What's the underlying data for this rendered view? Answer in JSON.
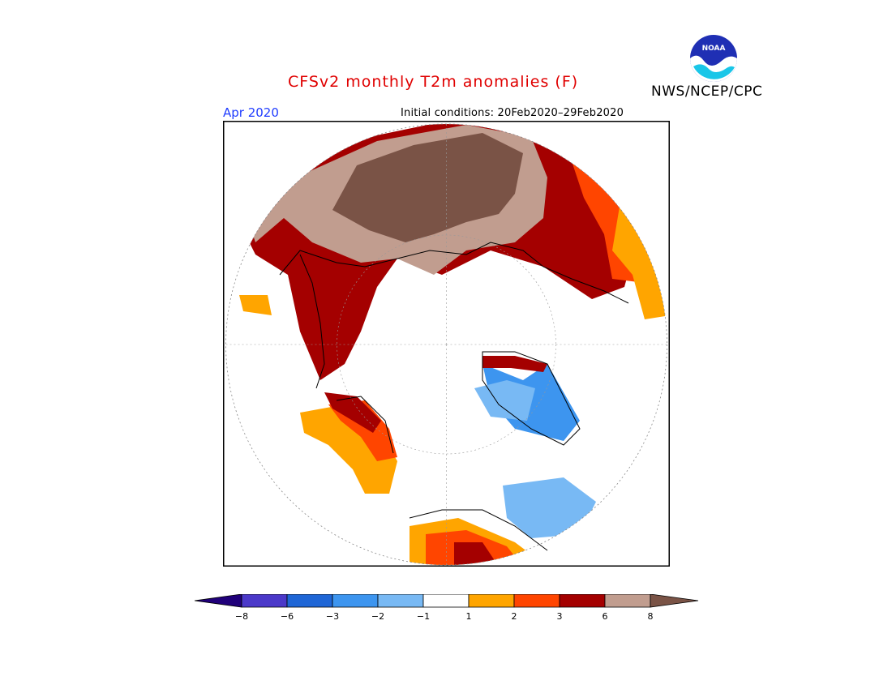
{
  "title": "CFSv2 monthly T2m anomalies (F)",
  "agency": "NWS/NCEP/CPC",
  "logo_text": "NOAA",
  "month": "Apr 2020",
  "initial_conditions": "Initial conditions: 20Feb2020–29Feb2020",
  "colors": {
    "title": "#e00000",
    "month": "#1f3cff"
  },
  "colorbar": {
    "colors": [
      "#20007a",
      "#4b39c9",
      "#1f66d6",
      "#3d95ef",
      "#78b9f4",
      "#ffffff",
      "#ffa500",
      "#ff4500",
      "#a40000",
      "#c19d8f",
      "#7a5346"
    ],
    "labels": [
      "−8",
      "−6",
      "−3",
      "−2",
      "−1",
      "1",
      "2",
      "3",
      "6",
      "8"
    ]
  }
}
